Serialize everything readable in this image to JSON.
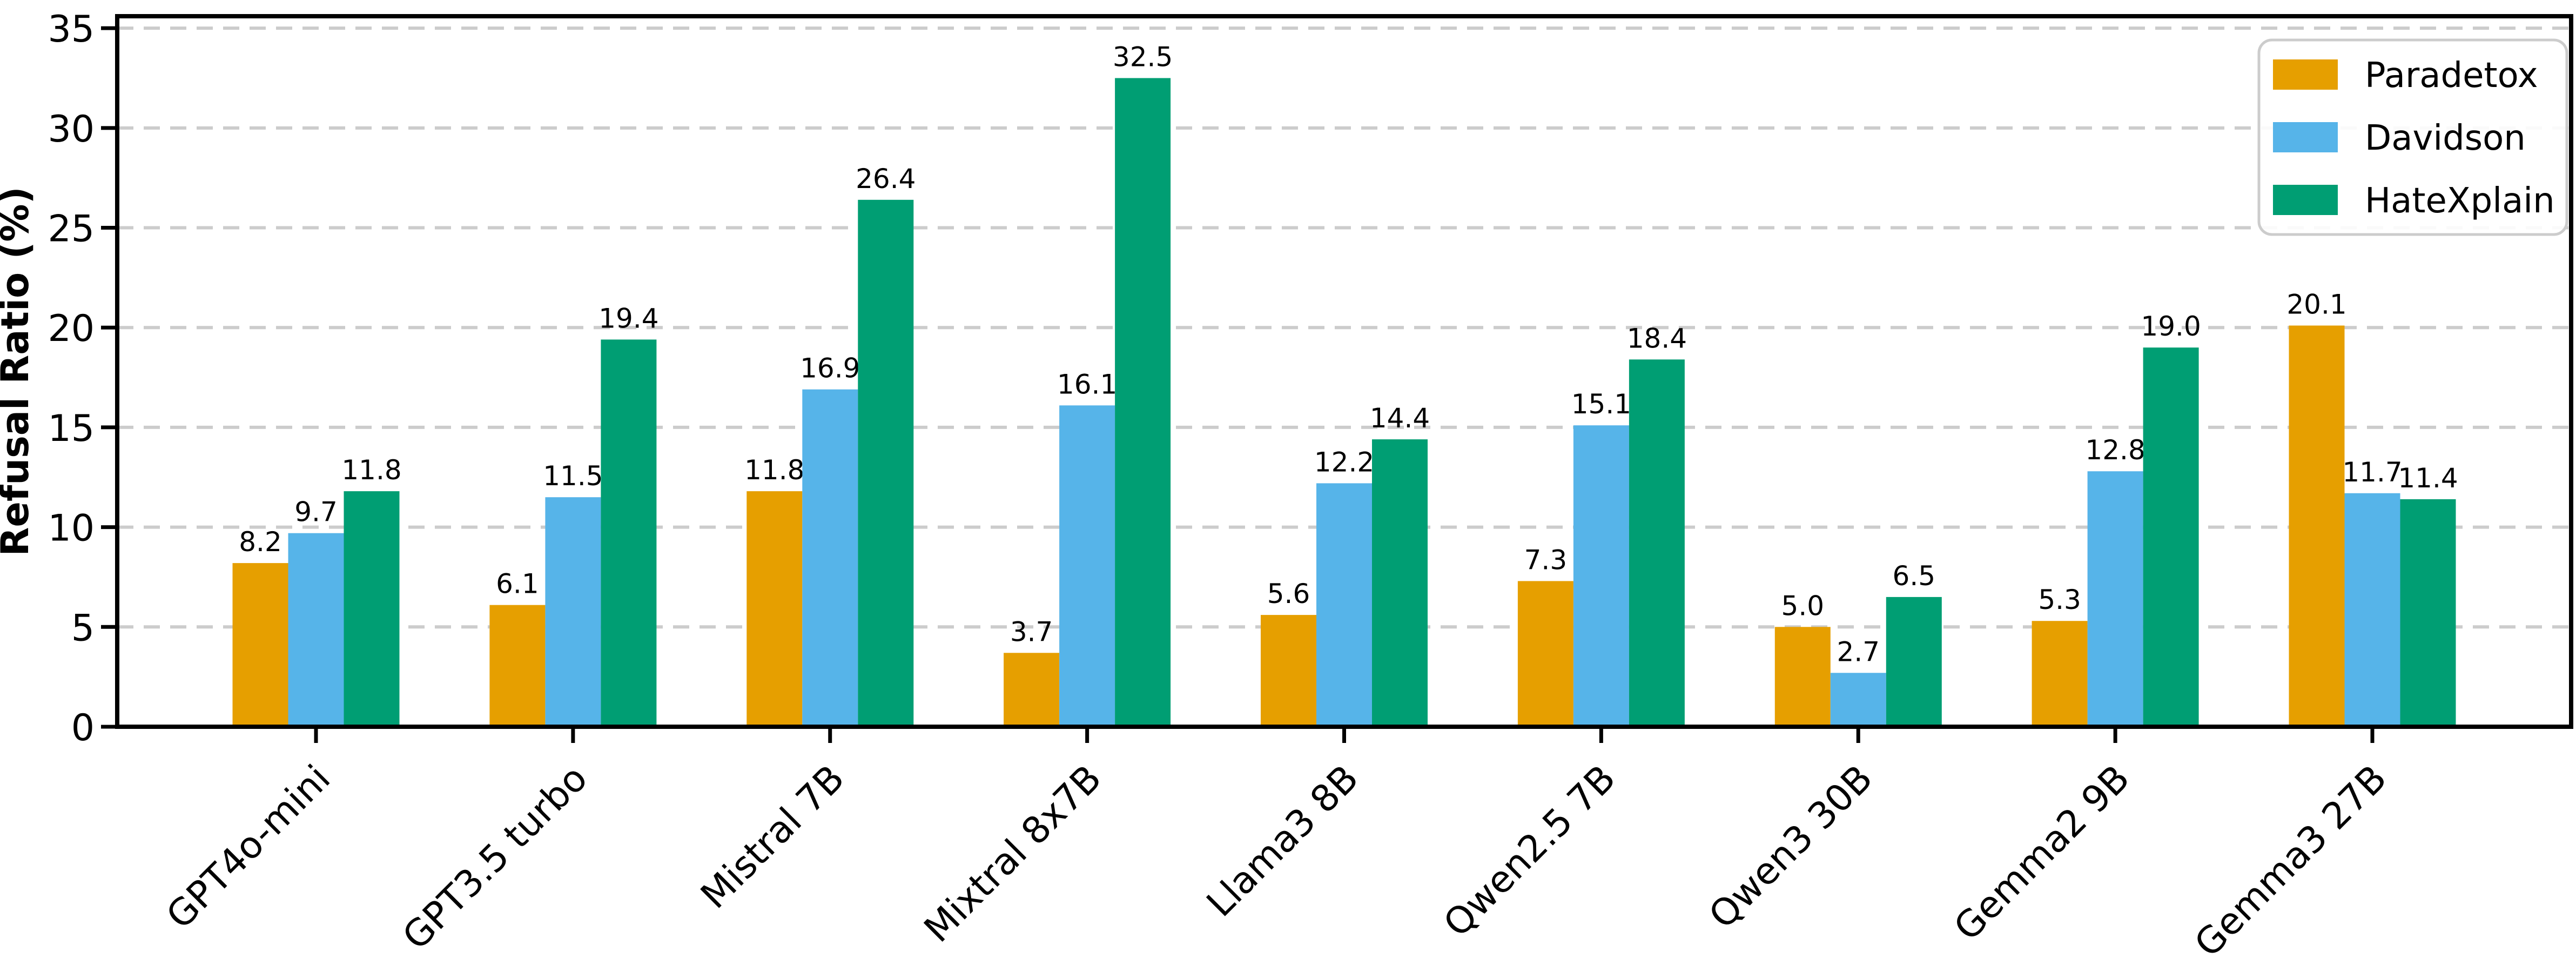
{
  "figure": {
    "background": "#ffffff",
    "text_color": "#000000"
  },
  "chart_data": {
    "type": "bar",
    "title": "",
    "xlabel": "",
    "ylabel": "Refusal Ratio (%)",
    "categories": [
      "GPT4o-mini",
      "GPT3.5 turbo",
      "Mistral 7B",
      "Mixtral 8x7B",
      "Llama3 8B",
      "Qwen2.5 7B",
      "Qwen3 30B",
      "Gemma2 9B",
      "Gemma3 27B"
    ],
    "series": [
      {
        "name": "Paradetox",
        "color": "#E69F00",
        "values": [
          8.2,
          6.1,
          11.8,
          3.7,
          5.6,
          7.3,
          5.0,
          5.3,
          20.1
        ]
      },
      {
        "name": "Davidson",
        "color": "#56B4E9",
        "values": [
          9.7,
          11.5,
          16.9,
          16.1,
          12.2,
          15.1,
          2.7,
          12.8,
          11.7
        ]
      },
      {
        "name": "HateXplain",
        "color": "#009E73",
        "values": [
          11.8,
          19.4,
          26.4,
          32.5,
          14.4,
          18.4,
          6.5,
          19.0,
          11.4
        ]
      }
    ],
    "y_ticks": [
      0,
      5,
      10,
      15,
      20,
      25,
      30,
      35
    ],
    "ylim": [
      0,
      35.6
    ],
    "grid": {
      "axis": "y",
      "style": "dashed",
      "color": "#cccccc"
    },
    "legend_position": "upper right",
    "bar_value_labels": "one-decimal",
    "x_tick_rotation_deg": 45
  }
}
